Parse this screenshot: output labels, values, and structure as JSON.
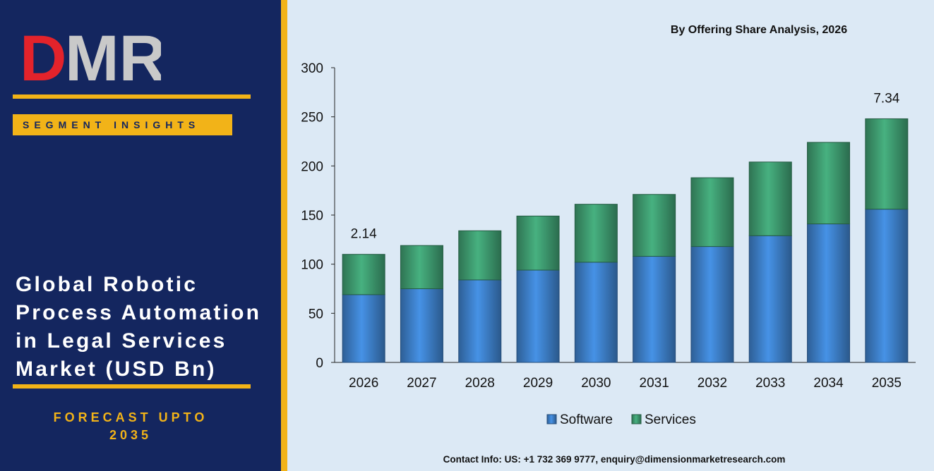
{
  "logo": {
    "text": "DMR",
    "colors": {
      "d": "#e3232b",
      "mr": "#c9c9c9"
    }
  },
  "sidebar": {
    "segment_label": "SEGMENT INSIGHTS",
    "report_title": "Global Robotic Process Automation in Legal Services Market (USD Bn)",
    "forecast_line1": "FORECAST UPTO",
    "forecast_line2": "2035"
  },
  "header": {
    "subtitle": "By Offering Share Analysis, 2026"
  },
  "footer": {
    "contact": "Contact Info: US: +1 732 369 9777, enquiry@dimensionmarketresearch.com"
  },
  "colors": {
    "panel": "#14265f",
    "accent": "#f2b318",
    "software": "#3d7fc8",
    "services": "#3e9a6f",
    "background": "#dce9f5"
  },
  "chart_data": {
    "type": "bar",
    "stacked": true,
    "categories": [
      "2026",
      "2027",
      "2028",
      "2029",
      "2030",
      "2031",
      "2032",
      "2033",
      "2034",
      "2035"
    ],
    "series": [
      {
        "name": "Software",
        "color": "#3d7fc8",
        "values": [
          69,
          75,
          84,
          94,
          102,
          108,
          118,
          129,
          141,
          156
        ]
      },
      {
        "name": "Services",
        "color": "#3e9a6f",
        "values": [
          41,
          44,
          50,
          55,
          59,
          63,
          70,
          75,
          83,
          92
        ]
      }
    ],
    "annotations": [
      {
        "category": "2026",
        "text": "2.14"
      },
      {
        "category": "2035",
        "text": "7.34"
      }
    ],
    "ylim": [
      0,
      300
    ],
    "yticks": [
      0,
      50,
      100,
      150,
      200,
      250,
      300
    ],
    "legend_position": "bottom",
    "grid": false
  }
}
